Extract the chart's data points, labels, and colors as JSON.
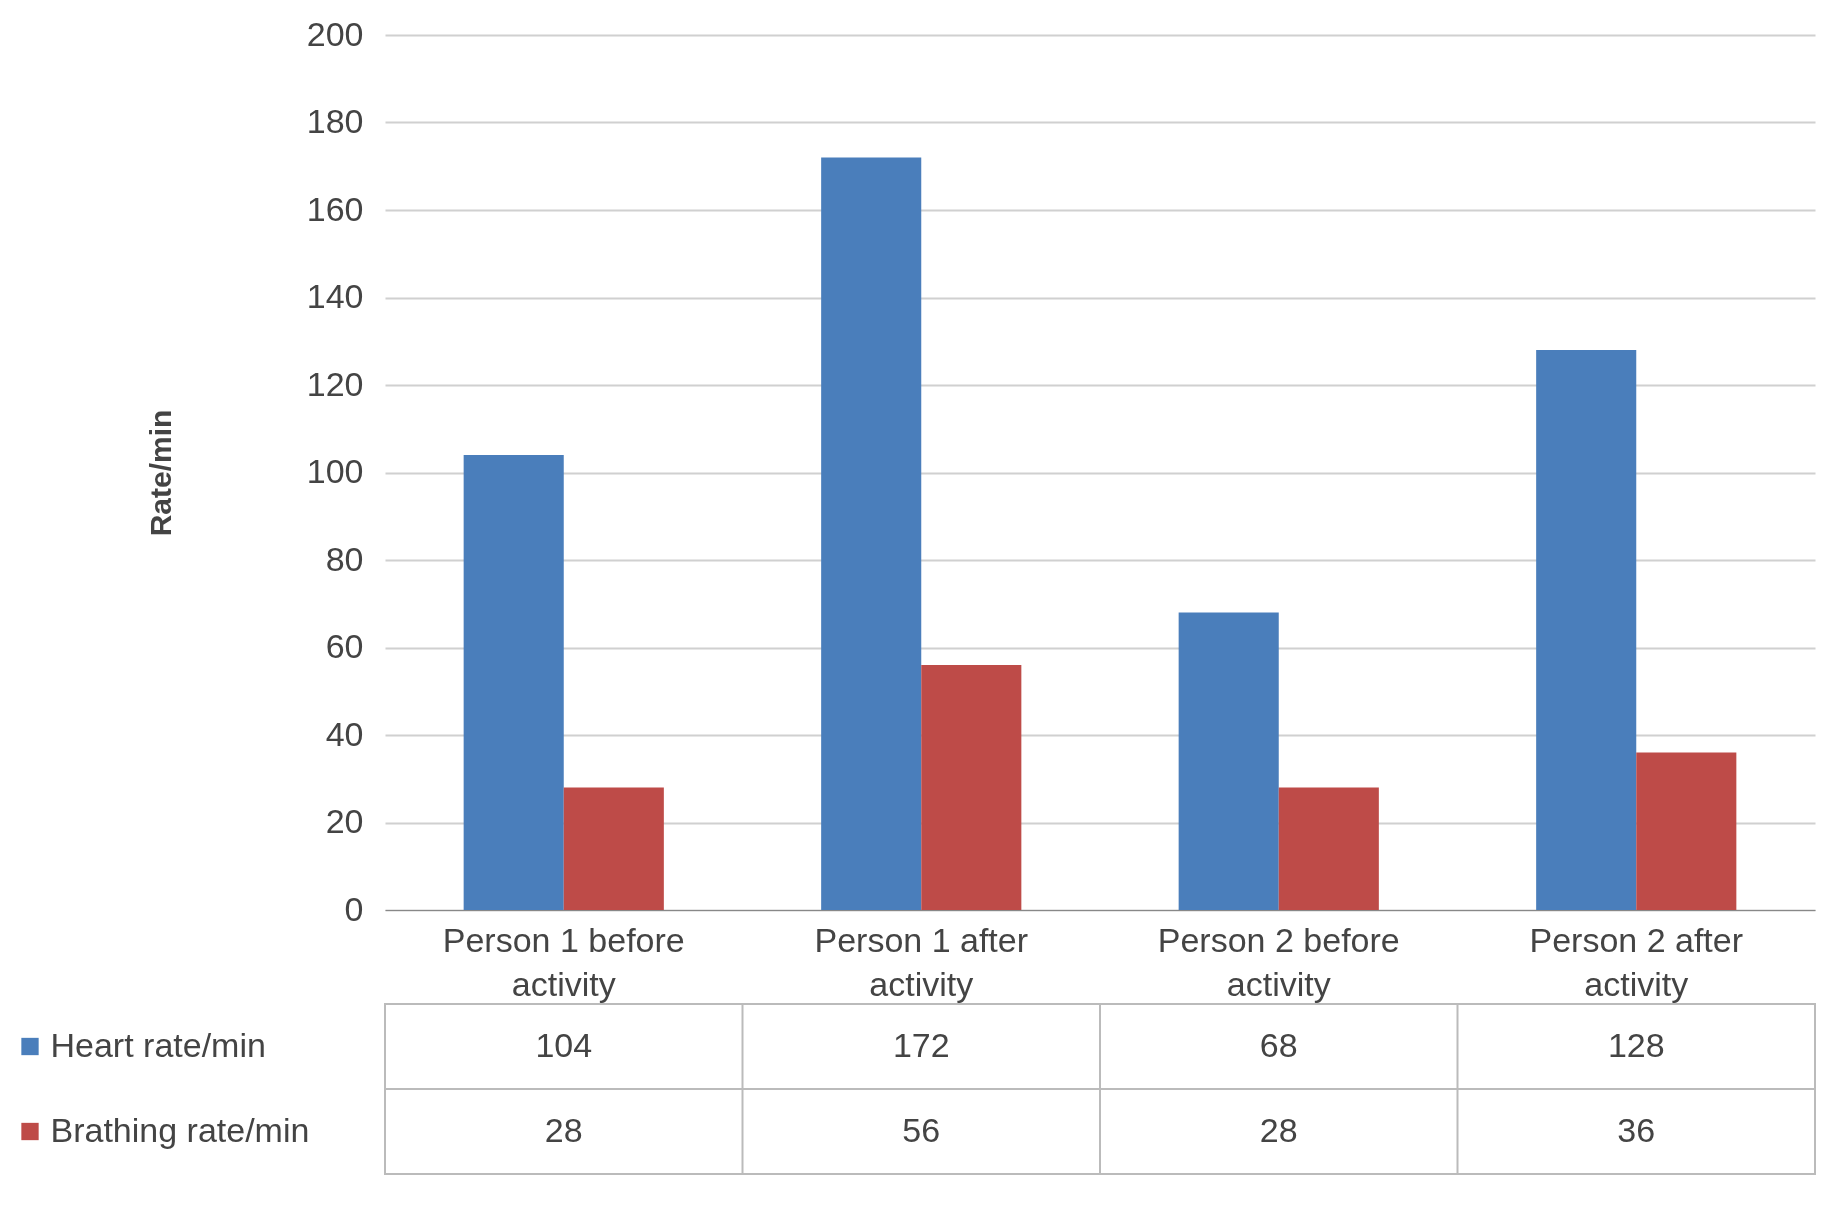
{
  "chart_data": {
    "type": "bar",
    "ylabel": "Rate/min",
    "categories": [
      "Person 1 before activity",
      "Person 1 after activity",
      "Person 2 before activity",
      "Person 2 after activity"
    ],
    "series": [
      {
        "name": "Heart rate/min",
        "color": "#4a7ebb",
        "values": [
          104,
          172,
          68,
          128
        ]
      },
      {
        "name": "Brathing rate/min",
        "color": "#be4b48",
        "values": [
          28,
          56,
          28,
          36
        ]
      }
    ],
    "ylim": [
      0,
      200
    ],
    "yticks": [
      0,
      20,
      40,
      60,
      80,
      100,
      120,
      140,
      160,
      180,
      200
    ],
    "grid": "y",
    "legend": "bottom",
    "data_labels": true
  }
}
